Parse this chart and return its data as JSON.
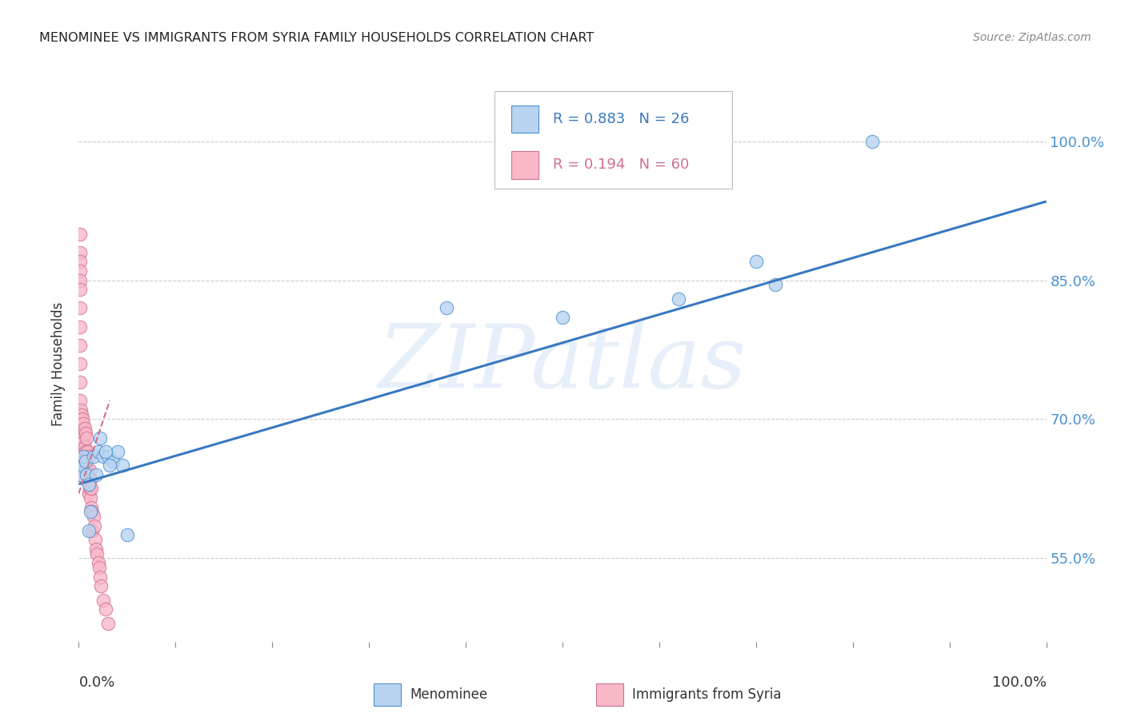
{
  "title": "MENOMINEE VS IMMIGRANTS FROM SYRIA FAMILY HOUSEHOLDS CORRELATION CHART",
  "source": "Source: ZipAtlas.com",
  "ylabel": "Family Households",
  "xlim": [
    0.0,
    1.0
  ],
  "ylim": [
    0.46,
    1.06
  ],
  "yticks": [
    0.55,
    0.7,
    0.85,
    1.0
  ],
  "yticklabels": [
    "55.0%",
    "70.0%",
    "85.0%",
    "100.0%"
  ],
  "xticks": [
    0.0,
    0.1,
    0.2,
    0.3,
    0.4,
    0.5,
    0.6,
    0.7,
    0.8,
    0.9,
    1.0
  ],
  "xticklabels": [
    "0.0%",
    "",
    "",
    "",
    "",
    "",
    "",
    "",
    "",
    "",
    "100.0%"
  ],
  "watermark_text": "ZIPatlas",
  "R_blue": "R = 0.883",
  "N_blue": "N = 26",
  "R_pink": "R = 0.194",
  "N_pink": "N = 60",
  "label_blue": "Menominee",
  "label_pink": "Immigrants from Syria",
  "blue_fill": "#B8D4F0",
  "blue_edge": "#4A90D0",
  "pink_fill": "#F8B8C8",
  "pink_edge": "#D07090",
  "blue_line_color": "#3878C0",
  "pink_line_color": "#D07090",
  "menominee_x": [
    0.002,
    0.003,
    0.005,
    0.007,
    0.008,
    0.01,
    0.01,
    0.012,
    0.015,
    0.018,
    0.02,
    0.022,
    0.025,
    0.03,
    0.035,
    0.04,
    0.045,
    0.05,
    0.028,
    0.032,
    0.38,
    0.5,
    0.62,
    0.7,
    0.72,
    0.82
  ],
  "menominee_y": [
    0.64,
    0.65,
    0.66,
    0.655,
    0.64,
    0.63,
    0.58,
    0.6,
    0.66,
    0.64,
    0.665,
    0.68,
    0.66,
    0.66,
    0.655,
    0.665,
    0.65,
    0.575,
    0.665,
    0.65,
    0.82,
    0.81,
    0.83,
    0.87,
    0.845,
    1.0
  ],
  "syria_x": [
    0.001,
    0.001,
    0.001,
    0.001,
    0.001,
    0.001,
    0.001,
    0.001,
    0.001,
    0.001,
    0.001,
    0.001,
    0.001,
    0.001,
    0.001,
    0.001,
    0.002,
    0.002,
    0.002,
    0.002,
    0.003,
    0.003,
    0.003,
    0.004,
    0.004,
    0.005,
    0.005,
    0.005,
    0.006,
    0.006,
    0.007,
    0.007,
    0.007,
    0.008,
    0.008,
    0.009,
    0.009,
    0.01,
    0.01,
    0.01,
    0.011,
    0.011,
    0.012,
    0.012,
    0.013,
    0.013,
    0.014,
    0.014,
    0.015,
    0.016,
    0.017,
    0.018,
    0.019,
    0.02,
    0.021,
    0.022,
    0.023,
    0.025,
    0.028,
    0.03
  ],
  "syria_y": [
    0.9,
    0.88,
    0.87,
    0.86,
    0.85,
    0.84,
    0.82,
    0.8,
    0.78,
    0.76,
    0.74,
    0.72,
    0.7,
    0.68,
    0.66,
    0.64,
    0.71,
    0.695,
    0.68,
    0.66,
    0.705,
    0.69,
    0.67,
    0.7,
    0.68,
    0.695,
    0.675,
    0.655,
    0.69,
    0.67,
    0.685,
    0.665,
    0.645,
    0.68,
    0.66,
    0.665,
    0.645,
    0.66,
    0.64,
    0.62,
    0.645,
    0.625,
    0.635,
    0.615,
    0.625,
    0.605,
    0.6,
    0.58,
    0.595,
    0.585,
    0.57,
    0.56,
    0.555,
    0.545,
    0.54,
    0.53,
    0.52,
    0.505,
    0.495,
    0.48
  ],
  "blue_trend_x": [
    0.0,
    1.0
  ],
  "blue_trend_y": [
    0.63,
    0.935
  ],
  "pink_trend_x": [
    0.0,
    0.032
  ],
  "pink_trend_y": [
    0.62,
    0.72
  ],
  "grid_color": "#CCCCCC",
  "bg_color": "#FFFFFF",
  "tick_color_right": "#4A90D0",
  "text_color": "#333333"
}
